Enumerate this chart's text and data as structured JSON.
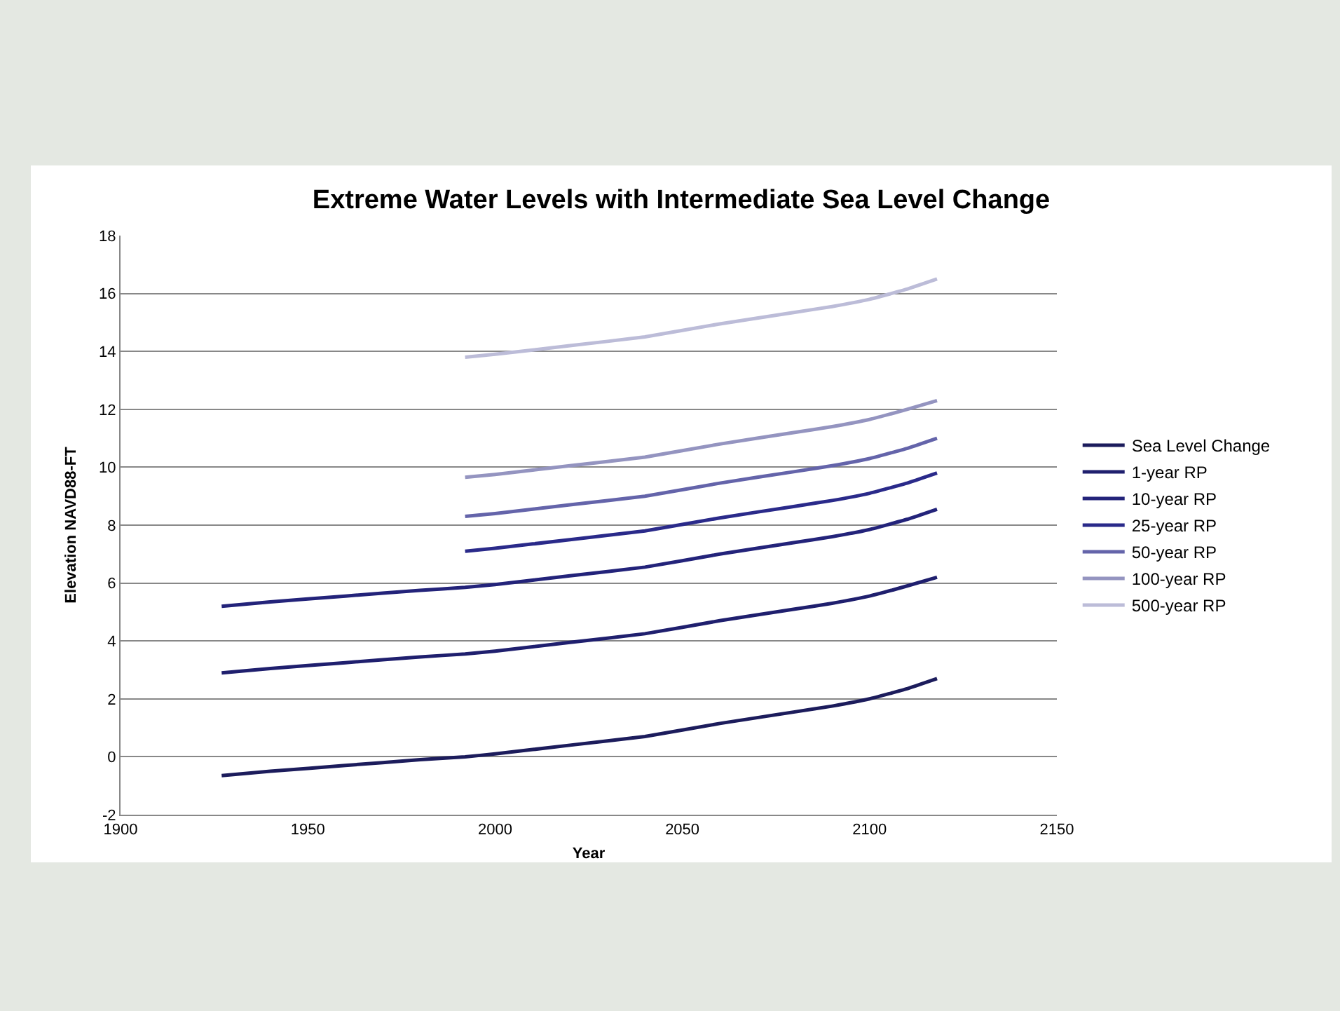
{
  "chart_data": {
    "type": "line",
    "title": "Extreme Water Levels with Intermediate Sea Level Change",
    "xlabel": "Year",
    "ylabel": "Elevation NAVD88-FT",
    "xlim": [
      1900,
      2150
    ],
    "xticks": [
      1900,
      1950,
      2000,
      2050,
      2100,
      2150
    ],
    "ylim": [
      -2,
      18
    ],
    "yticks": [
      -2,
      0,
      2,
      4,
      6,
      8,
      10,
      12,
      14,
      16,
      18
    ],
    "grid": "y",
    "legend": "right",
    "marker": "none",
    "line_style": "solid",
    "series": [
      {
        "name": "Sea Level Change",
        "color": "#1c1c5c",
        "x": [
          1927,
          1940,
          1960,
          1980,
          1992,
          2000,
          2020,
          2040,
          2060,
          2080,
          2090,
          2100,
          2110,
          2118
        ],
        "values": [
          -0.65,
          -0.5,
          -0.3,
          -0.1,
          0,
          0.1,
          0.4,
          0.7,
          1.15,
          1.55,
          1.75,
          2.0,
          2.35,
          2.7
        ]
      },
      {
        "name": "1-year RP",
        "color": "#1f1f6e",
        "x": [
          1927,
          1940,
          1960,
          1980,
          1992,
          2000,
          2020,
          2040,
          2060,
          2080,
          2090,
          2100,
          2110,
          2118
        ],
        "values": [
          2.9,
          3.05,
          3.25,
          3.45,
          3.55,
          3.65,
          3.95,
          4.25,
          4.7,
          5.1,
          5.3,
          5.55,
          5.9,
          6.2
        ]
      },
      {
        "name": "10-year RP",
        "color": "#23237a",
        "x": [
          1927,
          1940,
          1960,
          1980,
          1992,
          2000,
          2020,
          2040,
          2060,
          2080,
          2090,
          2100,
          2110,
          2118
        ],
        "values": [
          5.2,
          5.35,
          5.55,
          5.75,
          5.85,
          5.95,
          6.25,
          6.55,
          7.0,
          7.4,
          7.6,
          7.85,
          8.2,
          8.55
        ]
      },
      {
        "name": "25-year RP",
        "color": "#2a2a8a",
        "x": [
          1992,
          2000,
          2020,
          2040,
          2060,
          2080,
          2090,
          2100,
          2110,
          2118
        ],
        "values": [
          7.1,
          7.2,
          7.5,
          7.8,
          8.25,
          8.65,
          8.85,
          9.1,
          9.45,
          9.8
        ]
      },
      {
        "name": "50-year RP",
        "color": "#6464aa",
        "x": [
          1992,
          2000,
          2020,
          2040,
          2060,
          2080,
          2090,
          2100,
          2110,
          2118
        ],
        "values": [
          8.3,
          8.4,
          8.7,
          9.0,
          9.45,
          9.85,
          10.05,
          10.3,
          10.65,
          11.0
        ]
      },
      {
        "name": "100-year RP",
        "color": "#9494c0",
        "x": [
          1992,
          2000,
          2020,
          2040,
          2060,
          2080,
          2090,
          2100,
          2110,
          2118
        ],
        "values": [
          9.65,
          9.75,
          10.05,
          10.35,
          10.8,
          11.2,
          11.4,
          11.65,
          12.0,
          12.3
        ]
      },
      {
        "name": "500-year RP",
        "color": "#bcbcd8",
        "x": [
          1992,
          2000,
          2020,
          2040,
          2060,
          2080,
          2090,
          2100,
          2110,
          2118
        ],
        "values": [
          13.8,
          13.9,
          14.2,
          14.5,
          14.95,
          15.35,
          15.55,
          15.8,
          16.15,
          16.5
        ]
      }
    ]
  }
}
